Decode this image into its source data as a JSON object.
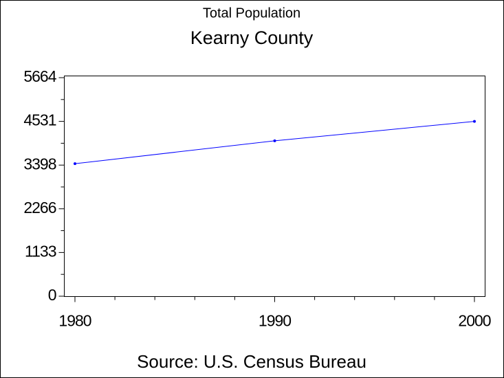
{
  "chart_data": {
    "type": "line",
    "title": "Total Population",
    "subtitle": "Kearny County",
    "footnote": "Source: U.S. Census Bureau",
    "x": [
      1980,
      1990,
      2000
    ],
    "series": [
      {
        "name": "Total Population",
        "color": "#0000ff",
        "values": [
          3435,
          4027,
          4531
        ]
      }
    ],
    "xlim": [
      1980,
      2000
    ],
    "xticks": [
      1980,
      1990,
      2000
    ],
    "ylim": [
      0,
      5664
    ],
    "yticks": [
      0,
      1133,
      2266,
      3398,
      4531,
      5664
    ],
    "grid": false
  }
}
